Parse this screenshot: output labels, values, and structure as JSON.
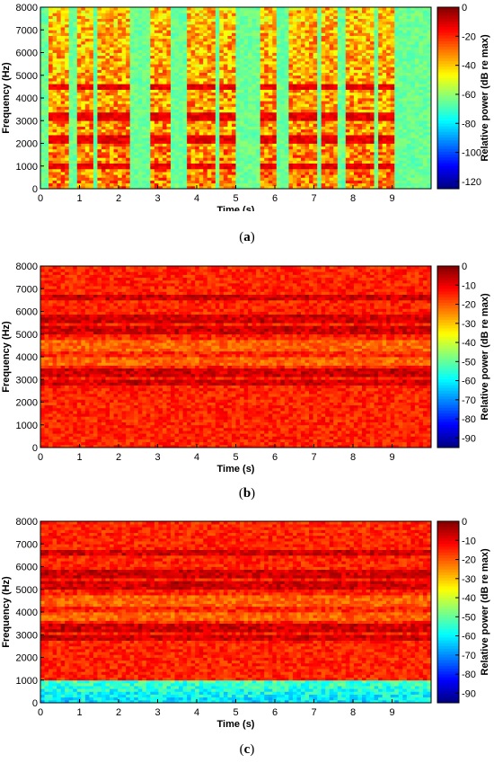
{
  "chart_data": [
    {
      "type": "heatmap",
      "panel": "a",
      "caption_letter": "a",
      "xlabel": "Time (s)",
      "ylabel": "Frequency (Hz)",
      "colorbar_label": "Relative power (dB re max)",
      "xlim": [
        0,
        10
      ],
      "ylim": [
        0,
        8000
      ],
      "x_ticks": [
        0,
        1,
        2,
        3,
        4,
        5,
        6,
        7,
        8,
        9
      ],
      "y_ticks": [
        0,
        1000,
        2000,
        3000,
        4000,
        5000,
        6000,
        7000,
        8000
      ],
      "color_range": [
        -125,
        0
      ],
      "colorbar_ticks": [
        0,
        -20,
        -40,
        -60,
        -80,
        -100,
        -120
      ],
      "colormap": "jet",
      "background_level_db": -65,
      "bright_bands_hz": [
        3200,
        2200,
        1000,
        4500
      ],
      "speech_bursts_s": [
        [
          0.2,
          0.7
        ],
        [
          0.9,
          1.4
        ],
        [
          1.5,
          2.3
        ],
        [
          2.8,
          3.3
        ],
        [
          3.8,
          4.5
        ],
        [
          4.6,
          5.0
        ],
        [
          5.6,
          6.0
        ],
        [
          6.4,
          7.1
        ],
        [
          7.2,
          7.6
        ],
        [
          7.8,
          8.5
        ],
        [
          8.6,
          9.1
        ]
      ]
    },
    {
      "type": "heatmap",
      "panel": "b",
      "caption_letter": "b",
      "xlabel": "Time (s)",
      "ylabel": "Frequency (Hz)",
      "colorbar_label": "Relative power (dB re max)",
      "xlim": [
        0,
        10
      ],
      "ylim": [
        0,
        8000
      ],
      "x_ticks": [
        0,
        1,
        2,
        3,
        4,
        5,
        6,
        7,
        8,
        9
      ],
      "y_ticks": [
        0,
        1000,
        2000,
        3000,
        4000,
        5000,
        6000,
        7000,
        8000
      ],
      "color_range": [
        -95,
        0
      ],
      "colorbar_ticks": [
        0,
        -10,
        -20,
        -30,
        -40,
        -50,
        -60,
        -70,
        -80,
        -90
      ],
      "colormap": "jet",
      "background_level_db": -15,
      "bright_bands_hz": [
        6600,
        5700,
        5200,
        3300,
        2900
      ],
      "dark_bands_hz": [
        4500,
        3800
      ]
    },
    {
      "type": "heatmap",
      "panel": "c",
      "caption_letter": "c",
      "xlabel": "Time (s)",
      "ylabel": "Frequency (Hz)",
      "colorbar_label": "Relative power (dB re max)",
      "xlim": [
        0,
        10
      ],
      "ylim": [
        0,
        8000
      ],
      "x_ticks": [
        0,
        1,
        2,
        3,
        4,
        5,
        6,
        7,
        8,
        9
      ],
      "y_ticks": [
        0,
        1000,
        2000,
        3000,
        4000,
        5000,
        6000,
        7000,
        8000
      ],
      "color_range": [
        -95,
        0
      ],
      "colorbar_ticks": [
        0,
        -10,
        -20,
        -30,
        -40,
        -50,
        -60,
        -70,
        -80,
        -90
      ],
      "colormap": "jet",
      "background_level_db": -15,
      "bright_bands_hz": [
        6600,
        5700,
        5200,
        3300,
        2900
      ],
      "dark_bands_hz": [
        4500,
        3800
      ],
      "low_freq_attenuation_hz": 1000
    }
  ]
}
